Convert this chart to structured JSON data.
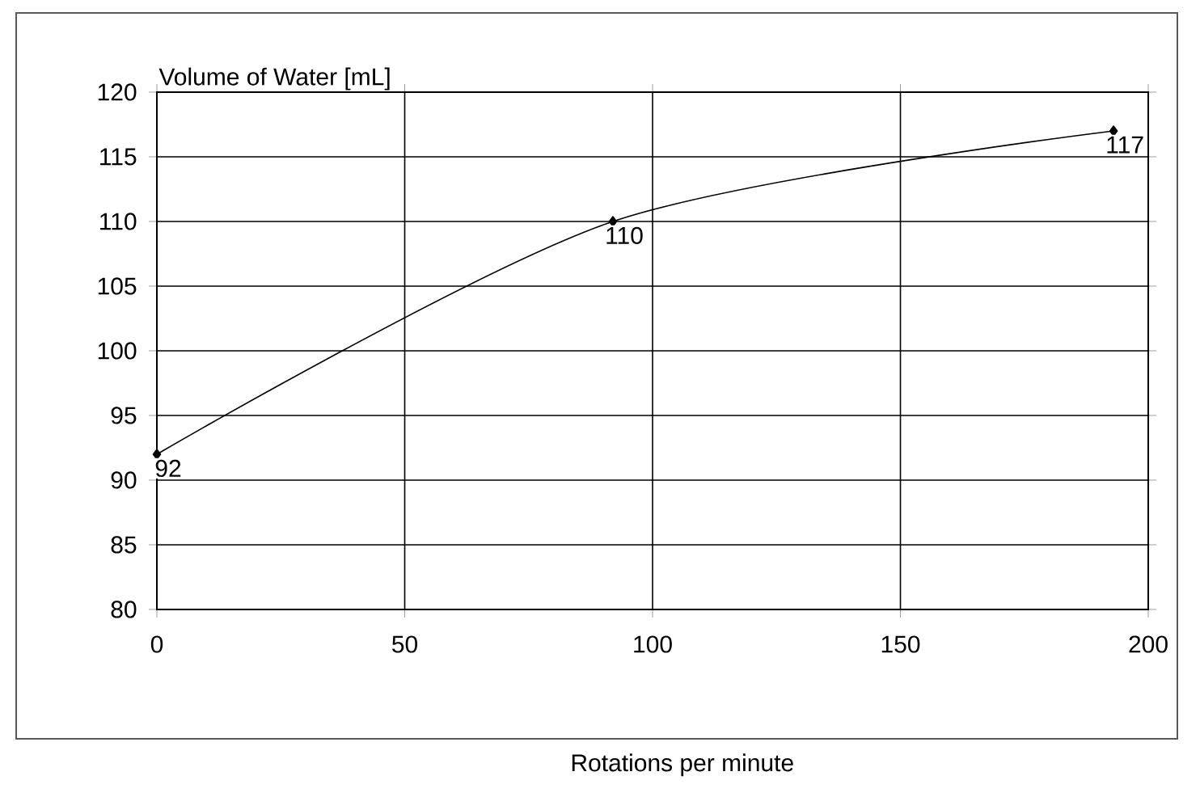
{
  "chart_data": {
    "type": "line",
    "xlabel": "Rotations per minute",
    "ylabel": "Volume of Water [mL]",
    "x": [
      0,
      92,
      193
    ],
    "series": [
      {
        "color": "#000000",
        "values": [
          92,
          110,
          117
        ]
      }
    ],
    "xlim": [
      0,
      200
    ],
    "xticks": [
      0,
      50,
      100,
      150,
      200
    ],
    "ylim": [
      80,
      120
    ],
    "yticks": [
      80,
      85,
      90,
      95,
      100,
      105,
      110,
      115,
      120
    ],
    "grid": true,
    "marker": "diamond",
    "line_style": "solid",
    "data_labels": true
  }
}
